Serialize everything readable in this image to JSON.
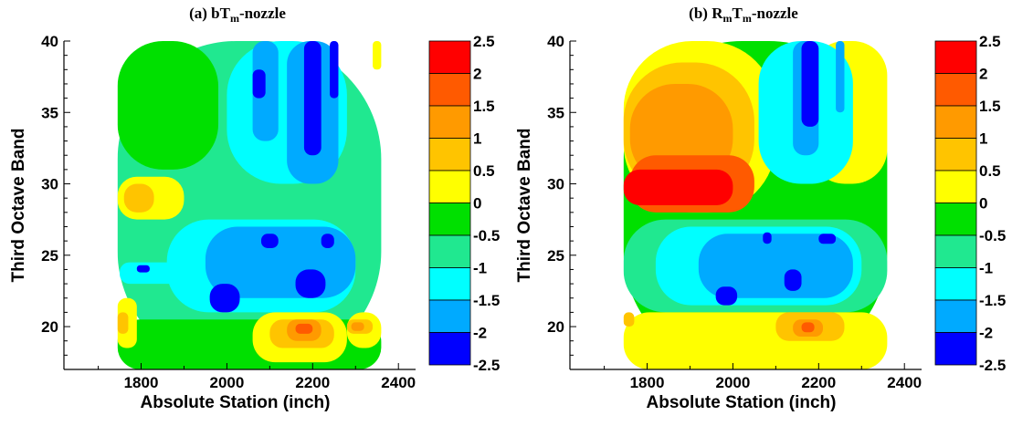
{
  "chart_data": [
    {
      "type": "heatmap",
      "title_main": "(a) bT",
      "title_sub": "m",
      "title_tail": "-nozzle",
      "xlabel": "Absolute Station (inch)",
      "ylabel": "Third Octave Band",
      "xlim": [
        1620,
        2440
      ],
      "ylim": [
        17,
        40
      ],
      "x_ticks": [
        1800,
        2000,
        2200,
        2400
      ],
      "y_ticks": [
        20,
        25,
        30,
        35,
        40
      ],
      "data_xlim": [
        1745,
        2360
      ],
      "colorbar": {
        "levels": [
          2.5,
          2,
          1.5,
          1,
          0.5,
          0,
          -0.5,
          -1,
          -1.5,
          -2,
          -2.5
        ],
        "labels": [
          "2.5",
          "2",
          "1.5",
          "1",
          "0.5",
          "0",
          "-0.5",
          "-1",
          "-1.5",
          "-2",
          "-2.5"
        ],
        "colors": [
          "#ff0000",
          "#ff5a00",
          "#ff9a00",
          "#ffc400",
          "#ffff00",
          "#00e000",
          "#20e890",
          "#00ffff",
          "#00aaff",
          "#0000ff"
        ]
      },
      "regions": [
        {
          "value": -0.75,
          "x": [
            1745,
            2360
          ],
          "y": [
            17,
            40
          ]
        },
        {
          "value": -0.25,
          "x": [
            1745,
            1980
          ],
          "y": [
            31,
            40
          ]
        },
        {
          "value": -0.25,
          "x": [
            1745,
            2360
          ],
          "y": [
            17,
            20.5
          ]
        },
        {
          "value": -1.25,
          "x": [
            2000,
            2280
          ],
          "y": [
            30,
            40
          ]
        },
        {
          "value": -1.25,
          "x": [
            1860,
            2300
          ],
          "y": [
            21,
            27.5
          ]
        },
        {
          "value": -1.25,
          "x": [
            1750,
            2100
          ],
          "y": [
            23,
            24.5
          ]
        },
        {
          "value": -1.75,
          "x": [
            2060,
            2120
          ],
          "y": [
            33,
            40
          ]
        },
        {
          "value": -1.75,
          "x": [
            2140,
            2260
          ],
          "y": [
            30,
            40
          ]
        },
        {
          "value": -1.75,
          "x": [
            1950,
            2300
          ],
          "y": [
            22,
            27
          ]
        },
        {
          "value": -2.25,
          "x": [
            2180,
            2220
          ],
          "y": [
            32,
            40
          ]
        },
        {
          "value": -2.25,
          "x": [
            2240,
            2260
          ],
          "y": [
            36,
            40
          ]
        },
        {
          "value": -2.25,
          "x": [
            2060,
            2090
          ],
          "y": [
            36,
            38
          ]
        },
        {
          "value": -2.25,
          "x": [
            1960,
            2030
          ],
          "y": [
            21,
            23
          ]
        },
        {
          "value": -2.25,
          "x": [
            2160,
            2230
          ],
          "y": [
            22,
            24
          ]
        },
        {
          "value": -2.25,
          "x": [
            2080,
            2120
          ],
          "y": [
            25.5,
            26.5
          ]
        },
        {
          "value": -2.25,
          "x": [
            2220,
            2250
          ],
          "y": [
            25.5,
            26.5
          ]
        },
        {
          "value": -2.25,
          "x": [
            1790,
            1820
          ],
          "y": [
            23.8,
            24.3
          ]
        },
        {
          "value": 0.25,
          "x": [
            1745,
            1900
          ],
          "y": [
            27.5,
            30.5
          ]
        },
        {
          "value": 0.25,
          "x": [
            1745,
            1790
          ],
          "y": [
            18.5,
            22
          ]
        },
        {
          "value": 0.25,
          "x": [
            2060,
            2280
          ],
          "y": [
            17.5,
            21
          ]
        },
        {
          "value": 0.25,
          "x": [
            2280,
            2360
          ],
          "y": [
            18.5,
            21
          ]
        },
        {
          "value": 0.25,
          "x": [
            2340,
            2360
          ],
          "y": [
            38,
            40
          ]
        },
        {
          "value": 0.75,
          "x": [
            1760,
            1830
          ],
          "y": [
            28,
            30
          ]
        },
        {
          "value": 0.75,
          "x": [
            1745,
            1770
          ],
          "y": [
            19.5,
            21
          ]
        },
        {
          "value": 0.75,
          "x": [
            2100,
            2250
          ],
          "y": [
            18.5,
            20.5
          ]
        },
        {
          "value": 0.75,
          "x": [
            2280,
            2340
          ],
          "y": [
            19.5,
            20.5
          ]
        },
        {
          "value": 1.25,
          "x": [
            2140,
            2220
          ],
          "y": [
            19,
            20.5
          ]
        },
        {
          "value": 1.25,
          "x": [
            2290,
            2320
          ],
          "y": [
            19.7,
            20.3
          ]
        },
        {
          "value": 1.75,
          "x": [
            2160,
            2200
          ],
          "y": [
            19.5,
            20.2
          ]
        }
      ]
    },
    {
      "type": "heatmap",
      "title_main": "(b) R",
      "title_sub": "m",
      "title_mid": "T",
      "title_sub2": "m",
      "title_tail": "-nozzle",
      "xlabel": "Absolute Station (inch)",
      "ylabel": "Third Octave Band",
      "xlim": [
        1620,
        2440
      ],
      "ylim": [
        17,
        40
      ],
      "x_ticks": [
        1800,
        2000,
        2200,
        2400
      ],
      "y_ticks": [
        20,
        25,
        30,
        35,
        40
      ],
      "data_xlim": [
        1745,
        2360
      ],
      "colorbar": {
        "levels": [
          2.5,
          2,
          1.5,
          1,
          0.5,
          0,
          -0.5,
          -1,
          -1.5,
          -2,
          -2.5
        ],
        "labels": [
          "2.5",
          "2",
          "1.5",
          "1",
          "0.5",
          "0",
          "-0.5",
          "-1",
          "-1.5",
          "-2",
          "-2.5"
        ],
        "colors": [
          "#ff0000",
          "#ff5a00",
          "#ff9a00",
          "#ffc400",
          "#ffff00",
          "#00e000",
          "#20e890",
          "#00ffff",
          "#00aaff",
          "#0000ff"
        ]
      },
      "regions": [
        {
          "value": -0.25,
          "x": [
            1745,
            2360
          ],
          "y": [
            17,
            40
          ]
        },
        {
          "value": 0.25,
          "x": [
            1745,
            2100
          ],
          "y": [
            28,
            40
          ]
        },
        {
          "value": 0.25,
          "x": [
            2180,
            2360
          ],
          "y": [
            30,
            40
          ]
        },
        {
          "value": 0.75,
          "x": [
            1745,
            2050
          ],
          "y": [
            29,
            38.5
          ]
        },
        {
          "value": 1.25,
          "x": [
            1760,
            2000
          ],
          "y": [
            30,
            37
          ]
        },
        {
          "value": 1.75,
          "x": [
            1760,
            2050
          ],
          "y": [
            28,
            32
          ]
        },
        {
          "value": 2.25,
          "x": [
            1745,
            2000
          ],
          "y": [
            28.5,
            31
          ]
        },
        {
          "value": -0.75,
          "x": [
            1745,
            2360
          ],
          "y": [
            21,
            27.5
          ]
        },
        {
          "value": -1.25,
          "x": [
            1820,
            2300
          ],
          "y": [
            21.5,
            27
          ]
        },
        {
          "value": -1.25,
          "x": [
            2060,
            2280
          ],
          "y": [
            30,
            40
          ]
        },
        {
          "value": -1.75,
          "x": [
            2140,
            2200
          ],
          "y": [
            32,
            40
          ]
        },
        {
          "value": -1.75,
          "x": [
            2240,
            2260
          ],
          "y": [
            35,
            40
          ]
        },
        {
          "value": -1.75,
          "x": [
            1920,
            2280
          ],
          "y": [
            22,
            26.5
          ]
        },
        {
          "value": -2.25,
          "x": [
            2160,
            2200
          ],
          "y": [
            34,
            40
          ]
        },
        {
          "value": -2.25,
          "x": [
            1960,
            2010
          ],
          "y": [
            21.5,
            22.8
          ]
        },
        {
          "value": -2.25,
          "x": [
            2070,
            2090
          ],
          "y": [
            25.8,
            26.6
          ]
        },
        {
          "value": -2.25,
          "x": [
            2200,
            2240
          ],
          "y": [
            25.8,
            26.5
          ]
        },
        {
          "value": -2.25,
          "x": [
            2120,
            2160
          ],
          "y": [
            22.5,
            24
          ]
        },
        {
          "value": 0.25,
          "x": [
            1745,
            2360
          ],
          "y": [
            17,
            21
          ]
        },
        {
          "value": 0.75,
          "x": [
            2100,
            2260
          ],
          "y": [
            19,
            21
          ]
        },
        {
          "value": 1.25,
          "x": [
            2140,
            2210
          ],
          "y": [
            19.3,
            20.5
          ]
        },
        {
          "value": 1.75,
          "x": [
            2160,
            2190
          ],
          "y": [
            19.6,
            20.3
          ]
        },
        {
          "value": 0.75,
          "x": [
            1745,
            1770
          ],
          "y": [
            20,
            21
          ]
        }
      ]
    }
  ]
}
